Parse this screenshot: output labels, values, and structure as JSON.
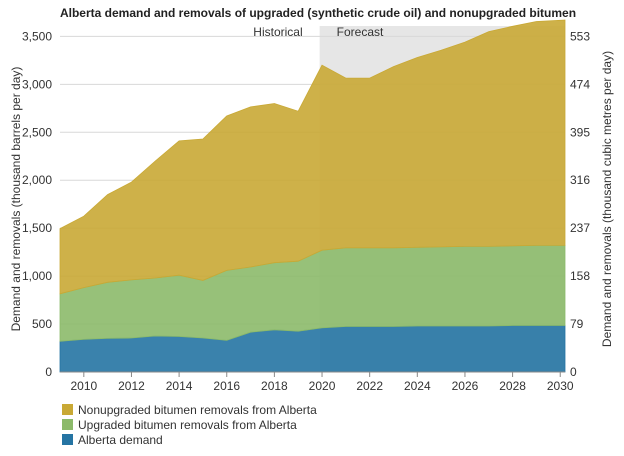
{
  "chart_data": {
    "type": "area",
    "stacked": true,
    "title": "Alberta demand and removals of upgraded (synthetic crude oil) and nonupgraded bitumen",
    "ylabel": "Demand and removals (thousand barrels per day)",
    "ylabel_right": "Demand and removals (thousand cubic metres per day)",
    "x": [
      2009,
      2010,
      2011,
      2012,
      2013,
      2014,
      2015,
      2016,
      2017,
      2018,
      2019,
      2020,
      2021,
      2022,
      2023,
      2024,
      2025,
      2026,
      2027,
      2028,
      2029,
      2030
    ],
    "x_ticks": [
      "2010",
      "2012",
      "2014",
      "2016",
      "2018",
      "2020",
      "2022",
      "2024",
      "2026",
      "2028",
      "2030"
    ],
    "y_ticks": [
      "0",
      "500",
      "1,000",
      "1,500",
      "2,000",
      "2,500",
      "3,000",
      "3,500"
    ],
    "y_ticks_right": [
      "0",
      "79",
      "158",
      "237",
      "316",
      "395",
      "474",
      "553"
    ],
    "ylim": [
      0,
      3650
    ],
    "regions": [
      {
        "label": "Historical",
        "from": 2009,
        "to": 2019.9
      },
      {
        "label": "Forecast",
        "from": 2019.9,
        "to": 2030.2
      }
    ],
    "series": [
      {
        "name": "Alberta demand",
        "color": "#2574a3",
        "values": [
          320,
          340,
          350,
          355,
          375,
          370,
          355,
          330,
          415,
          440,
          425,
          460,
          475,
          475,
          475,
          480,
          480,
          480,
          480,
          485,
          485,
          485
        ]
      },
      {
        "name": "Upgraded bitumen removals from Alberta",
        "color": "#8cba6a",
        "values": [
          495,
          540,
          585,
          605,
          605,
          640,
          600,
          730,
          680,
          700,
          730,
          810,
          820,
          820,
          820,
          820,
          825,
          830,
          830,
          830,
          835,
          835
        ]
      },
      {
        "name": "Nonupgraded bitumen removals from Alberta",
        "color": "#c9a935",
        "values": [
          680,
          745,
          915,
          1020,
          1220,
          1400,
          1475,
          1610,
          1670,
          1660,
          1565,
          1930,
          1770,
          1770,
          1890,
          1980,
          2050,
          2130,
          2240,
          2290,
          2335,
          2350
        ]
      }
    ],
    "legend": [
      "Nonupgraded bitumen removals from Alberta",
      "Upgraded bitumen removals from Alberta",
      "Alberta demand"
    ],
    "legend_position": "bottom-left",
    "grid": true
  }
}
